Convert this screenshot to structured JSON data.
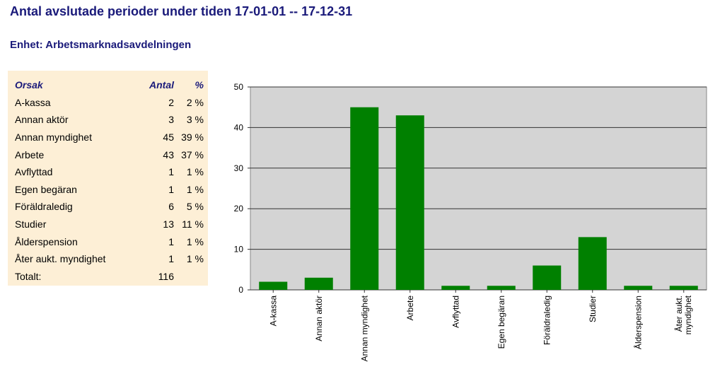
{
  "header": {
    "title": "Antal avslutade perioder under tiden 17-01-01 -- 17-12-31",
    "subtitle": "Enhet: Arbetsmarknadsavdelningen"
  },
  "table": {
    "columns": [
      "Orsak",
      "Antal",
      "%"
    ],
    "rows": [
      [
        "A-kassa",
        2,
        "2 %"
      ],
      [
        "Annan aktör",
        3,
        "3 %"
      ],
      [
        "Annan myndighet",
        45,
        "39 %"
      ],
      [
        "Arbete",
        43,
        "37 %"
      ],
      [
        "Avflyttad",
        1,
        "1 %"
      ],
      [
        "Egen begäran",
        1,
        "1 %"
      ],
      [
        "Föräldraledig",
        6,
        "5 %"
      ],
      [
        "Studier",
        13,
        "11 %"
      ],
      [
        "Ålderspension",
        1,
        "1 %"
      ],
      [
        "Åter aukt. myndighet",
        1,
        "1 %"
      ]
    ],
    "total": [
      "Totalt:",
      116
    ]
  },
  "chart_data": {
    "type": "bar",
    "categories": [
      "A-kassa",
      "Annan aktör",
      "Annan myndighet",
      "Arbete",
      "Avflyttad",
      "Egen begäran",
      "Föräldraledig",
      "Studier",
      "Ålderspension",
      "Åter aukt. myndighet"
    ],
    "values": [
      2,
      3,
      45,
      43,
      1,
      1,
      6,
      13,
      1,
      1
    ],
    "color": "#008000",
    "ylim": [
      0,
      50
    ],
    "yticks": [
      0,
      10,
      20,
      30,
      40,
      50
    ],
    "grid": true
  }
}
